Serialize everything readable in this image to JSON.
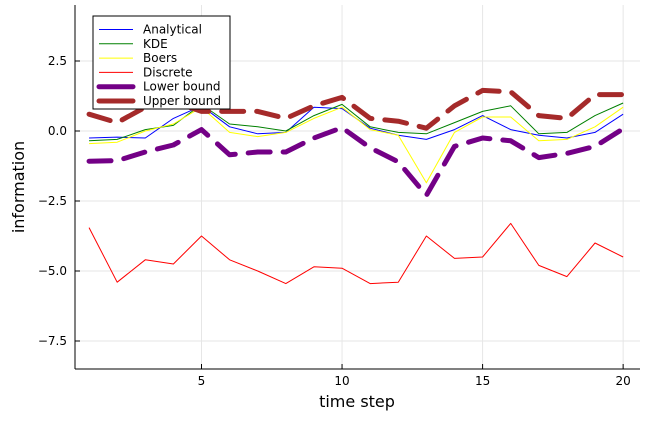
{
  "chart_data": {
    "type": "line",
    "xlabel": "time step",
    "ylabel": "information",
    "xlim": [
      0.5,
      20.6
    ],
    "ylim": [
      -8.5,
      4.5
    ],
    "xticks": [
      5,
      10,
      15,
      20
    ],
    "yticks": [
      2.5,
      0.0,
      -2.5,
      -5.0,
      -7.5
    ],
    "ytick_labels": [
      "2.5",
      "0.0",
      "−2.5",
      "−5.0",
      "−7.5"
    ],
    "grid": true,
    "legend_position": "top-left",
    "x": [
      1,
      2,
      3,
      4,
      5,
      6,
      7,
      8,
      9,
      10,
      11,
      12,
      13,
      14,
      15,
      16,
      17,
      18,
      19,
      20
    ],
    "series": [
      {
        "name": "Analytical",
        "color": "#0000ff",
        "style": "solid",
        "width": 1,
        "values": [
          -0.25,
          -0.22,
          -0.25,
          0.45,
          0.9,
          0.15,
          -0.1,
          -0.05,
          0.85,
          0.8,
          0.1,
          -0.15,
          -0.3,
          0.05,
          0.55,
          0.05,
          -0.15,
          -0.25,
          -0.05,
          0.6
        ]
      },
      {
        "name": "KDE",
        "color": "#008000",
        "style": "solid",
        "width": 1,
        "values": [
          -0.35,
          -0.3,
          0.05,
          0.2,
          0.95,
          0.25,
          0.15,
          0.0,
          0.55,
          0.95,
          0.15,
          -0.05,
          -0.1,
          0.3,
          0.7,
          0.9,
          -0.1,
          -0.05,
          0.55,
          1.0
        ]
      },
      {
        "name": "Boers",
        "color": "#ffff00",
        "style": "solid",
        "width": 1,
        "values": [
          -0.45,
          -0.4,
          0.0,
          0.25,
          0.85,
          -0.05,
          -0.2,
          -0.05,
          0.45,
          0.85,
          0.05,
          -0.15,
          -1.85,
          -0.05,
          0.5,
          0.5,
          -0.35,
          -0.3,
          0.15,
          0.85
        ]
      },
      {
        "name": "Discrete",
        "color": "#ff0000",
        "style": "solid",
        "width": 1,
        "values": [
          -3.45,
          -5.4,
          -4.6,
          -4.75,
          -3.75,
          -4.6,
          -5.0,
          -5.45,
          -4.85,
          -4.9,
          -5.45,
          -5.4,
          -3.75,
          -4.55,
          -4.5,
          -3.3,
          -4.8,
          -5.2,
          -4.0,
          -4.5
        ]
      },
      {
        "name": "Lower bound",
        "color": "#730086",
        "style": "dashed",
        "width": 5,
        "values": [
          -1.08,
          -1.06,
          -0.75,
          -0.5,
          0.05,
          -0.85,
          -0.75,
          -0.75,
          -0.25,
          0.12,
          -0.6,
          -1.1,
          -2.3,
          -0.55,
          -0.25,
          -0.35,
          -0.95,
          -0.8,
          -0.55,
          0.08
        ]
      },
      {
        "name": "Upper bound",
        "color": "#a52a2a",
        "style": "dashed",
        "width": 5,
        "values": [
          0.6,
          0.3,
          0.85,
          1.05,
          0.7,
          0.7,
          0.7,
          0.45,
          0.9,
          1.2,
          0.45,
          0.35,
          0.1,
          0.9,
          1.45,
          1.4,
          0.55,
          0.45,
          1.3,
          1.3
        ]
      }
    ]
  }
}
